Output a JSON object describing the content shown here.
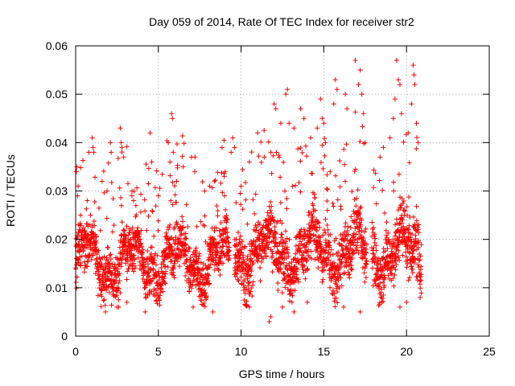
{
  "chart_data": {
    "type": "scatter",
    "title": "Day 059 of 2014, Rate Of TEC Index for receiver str2",
    "xlabel": "GPS time / hours",
    "ylabel": "ROTI / TECUs",
    "xlim": [
      0,
      25
    ],
    "ylim": [
      0,
      0.06
    ],
    "xticks": [
      0,
      5,
      10,
      15,
      20,
      25
    ],
    "yticks": [
      0,
      0.01,
      0.02,
      0.03,
      0.04,
      0.05,
      0.06
    ],
    "xtick_labels": [
      "0",
      "5",
      "10",
      "15",
      "20",
      "25"
    ],
    "ytick_labels": [
      "0",
      "0.01",
      "0.02",
      "0.03",
      "0.04",
      "0.05",
      "0.06"
    ],
    "grid": true,
    "marker": "+",
    "color": "#ff0000",
    "series": [
      {
        "name": "ROTI",
        "points": [
          [
            0.05,
            0.034
          ],
          [
            0.08,
            0.035
          ],
          [
            0.12,
            0.029
          ],
          [
            0.15,
            0.031
          ],
          [
            0.3,
            0.025
          ],
          [
            0.7,
            0.028
          ],
          [
            0.9,
            0.025
          ],
          [
            1.0,
            0.041
          ],
          [
            1.05,
            0.039
          ],
          [
            1.1,
            0.038
          ],
          [
            1.6,
            0.032
          ],
          [
            1.9,
            0.03
          ],
          [
            2.1,
            0.04
          ],
          [
            2.15,
            0.038
          ],
          [
            2.7,
            0.043
          ],
          [
            2.75,
            0.04
          ],
          [
            2.8,
            0.039
          ],
          [
            2.9,
            0.037
          ],
          [
            3.4,
            0.029
          ],
          [
            3.5,
            0.028
          ],
          [
            4.5,
            0.042
          ],
          [
            4.6,
            0.036
          ],
          [
            5.0,
            0.029
          ],
          [
            5.6,
            0.04
          ],
          [
            5.7,
            0.036
          ],
          [
            5.8,
            0.046
          ],
          [
            5.85,
            0.045
          ],
          [
            5.9,
            0.038
          ],
          [
            6.1,
            0.032
          ],
          [
            6.5,
            0.035
          ],
          [
            7.0,
            0.037
          ],
          [
            7.2,
            0.034
          ],
          [
            7.8,
            0.03
          ],
          [
            8.1,
            0.031
          ],
          [
            9.0,
            0.029
          ],
          [
            9.4,
            0.038
          ],
          [
            9.5,
            0.041
          ],
          [
            9.6,
            0.039
          ],
          [
            10.0,
            0.031
          ],
          [
            10.5,
            0.036
          ],
          [
            11.0,
            0.042
          ],
          [
            11.4,
            0.037
          ],
          [
            11.8,
            0.038
          ],
          [
            12.0,
            0.048
          ],
          [
            12.1,
            0.047
          ],
          [
            12.4,
            0.044
          ],
          [
            12.7,
            0.05
          ],
          [
            12.8,
            0.051
          ],
          [
            12.9,
            0.044
          ],
          [
            13.2,
            0.043
          ],
          [
            13.6,
            0.047
          ],
          [
            13.8,
            0.045
          ],
          [
            14.2,
            0.041
          ],
          [
            14.6,
            0.043
          ],
          [
            14.8,
            0.049
          ],
          [
            14.9,
            0.045
          ],
          [
            15.0,
            0.044
          ],
          [
            15.1,
            0.04
          ],
          [
            15.6,
            0.048
          ],
          [
            15.7,
            0.053
          ],
          [
            15.8,
            0.051
          ],
          [
            16.3,
            0.05
          ],
          [
            16.4,
            0.047
          ],
          [
            16.9,
            0.057
          ],
          [
            17.1,
            0.052
          ],
          [
            17.2,
            0.055
          ],
          [
            17.3,
            0.05
          ],
          [
            17.4,
            0.046
          ],
          [
            17.5,
            0.04
          ],
          [
            18.4,
            0.037
          ],
          [
            18.6,
            0.039
          ],
          [
            19.0,
            0.041
          ],
          [
            19.2,
            0.045
          ],
          [
            19.3,
            0.049
          ],
          [
            19.4,
            0.057
          ],
          [
            19.5,
            0.053
          ],
          [
            19.6,
            0.052
          ],
          [
            19.7,
            0.046
          ],
          [
            20.1,
            0.042
          ],
          [
            20.3,
            0.048
          ],
          [
            20.4,
            0.056
          ],
          [
            20.45,
            0.054
          ],
          [
            20.5,
            0.052
          ],
          [
            20.6,
            0.044
          ],
          [
            20.7,
            0.04
          ],
          [
            1.8,
            0.005
          ],
          [
            2.6,
            0.006
          ],
          [
            3.1,
            0.007
          ],
          [
            4.2,
            0.005
          ],
          [
            7.1,
            0.006
          ],
          [
            8.3,
            0.005
          ],
          [
            10.5,
            0.006
          ],
          [
            11.7,
            0.003
          ],
          [
            11.8,
            0.004
          ],
          [
            12.5,
            0.006
          ],
          [
            13.2,
            0.005
          ],
          [
            14.0,
            0.007
          ],
          [
            16.2,
            0.006
          ],
          [
            17.2,
            0.005
          ],
          [
            18.5,
            0.007
          ],
          [
            19.6,
            0.006
          ],
          [
            20.0,
            0.007
          ]
        ]
      }
    ]
  }
}
